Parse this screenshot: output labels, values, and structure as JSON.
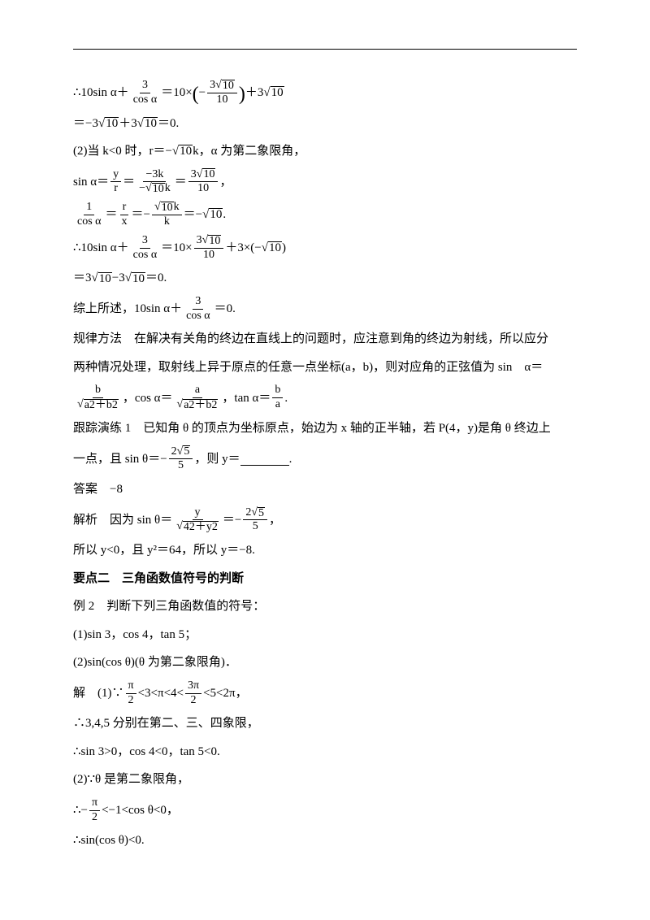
{
  "l1a": "∴10sin ",
  "l1b": "α",
  "l1c": "＋",
  "l1d": "3",
  "l1e": "cos α",
  "l1f": "＝10×",
  "l1g": "−",
  "l1h": "3",
  "l1i": "10",
  "l1j": "10",
  "l1k": "＋3",
  "l1l": "10",
  "l2a": "＝−3",
  "l2b": "10",
  "l2c": "＋3",
  "l2d": "10",
  "l2e": "＝0.",
  "l3": "(2)当 k<0 时，r＝−",
  "l3b": "10",
  "l3c": "k，α 为第二象限角，",
  "l4a": "sin α＝",
  "l4b": "y",
  "l4c": "r",
  "l4d": "＝",
  "l4e": "−3k",
  "l4f": "−",
  "l4g": "10",
  "l4h": "k",
  "l4i": "＝",
  "l4j": "3",
  "l4k": "10",
  "l4l": "10",
  "l4m": "，",
  "l5a": "1",
  "l5b": "cos α",
  "l5c": "＝",
  "l5d": "r",
  "l5e": "x",
  "l5f": "＝−",
  "l5g": "10",
  "l5h": "k",
  "l5i": "k",
  "l5j": "＝−",
  "l5k": "10",
  "l5l": ".",
  "l6a": "∴10sin α＋",
  "l6b": "3",
  "l6c": "cos α",
  "l6d": "＝10×",
  "l6e": "3",
  "l6f": "10",
  "l6g": "10",
  "l6h": "＋3×(−",
  "l6i": "10",
  "l6j": ")",
  "l7a": "＝3",
  "l7b": "10",
  "l7c": "−3",
  "l7d": "10",
  "l7e": "＝0.",
  "l8a": "综上所述，10sin α＋",
  "l8b": "3",
  "l8c": "cos α",
  "l8d": "＝0.",
  "l9": "规律方法　在解决有关角的终边在直线上的问题时，应注意到角的终边为射线，所以应分",
  "l10a": "两种情况处理，取射线上异于原点的任意一点坐标(a，b)，则对应角的正弦值为 sin　α＝",
  "l11a": "b",
  "l11b": "a2＋b2",
  "l11c": "，cos α＝",
  "l11d": "a",
  "l11e": "a2＋b2",
  "l11f": "，tan α＝",
  "l11g": "b",
  "l11h": "a",
  "l11i": ".",
  "l12a": "跟踪演练 1　已知角 θ 的顶点为坐标原点，始边为 x 轴的正半轴，若 P(4，y)是角 θ 终边上",
  "l13a": "一点，且 sin θ＝−",
  "l13b": "2",
  "l13c": "5",
  "l13d": "5",
  "l13e": "，则 y＝",
  "l13f": ".",
  "l14": "答案　−8",
  "l15a": "解析　因为 sin θ＝",
  "l15b": "y",
  "l15c": "42＋y2",
  "l15d": "＝−",
  "l15e": "2",
  "l15f": "5",
  "l15g": "5",
  "l15h": "，",
  "l16": "所以 y<0，且 y²＝64，所以 y＝−8.",
  "l17": "要点二　三角函数值符号的判断",
  "l18": "例 2　判断下列三角函数值的符号：",
  "l19": "(1)sin 3，cos 4，tan 5；",
  "l20": "(2)sin(cos θ)(θ 为第二象限角)．",
  "l21a": "解　(1)∵",
  "l21b": "π",
  "l21c": "2",
  "l21d": "<3<π<4<",
  "l21e": "3π",
  "l21f": "2",
  "l21g": "<5<2π，",
  "l22": "∴3,4,5 分别在第二、三、四象限，",
  "l23": "∴sin 3>0，cos 4<0，tan 5<0.",
  "l24": "(2)∵θ 是第二象限角，",
  "l25a": "∴−",
  "l25b": "π",
  "l25c": "2",
  "l25d": "<−1<cos θ<0，",
  "l26": "∴sin(cos θ)<0."
}
